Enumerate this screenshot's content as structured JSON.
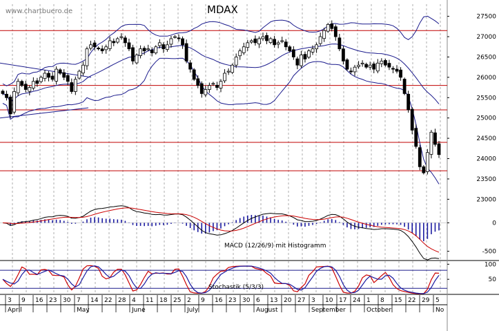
{
  "chart_data": [
    {
      "type": "candlestick",
      "title": "MDAX",
      "watermark": "www.chartbuero.de",
      "ylim": [
        22700,
        27800
      ],
      "y_ticks": [
        "27500",
        "27000",
        "26500",
        "26000",
        "25500",
        "25000",
        "24500",
        "24000",
        "23500",
        "23000"
      ],
      "y_tick_values": [
        27500,
        27000,
        26500,
        26000,
        25500,
        25000,
        24500,
        24000,
        23500,
        23000
      ],
      "horizontal_levels": [
        27150,
        25800,
        25200,
        24400,
        23700
      ],
      "close": [
        25600,
        25500,
        25100,
        25650,
        25900,
        25800,
        25700,
        25750,
        25900,
        25850,
        26000,
        26100,
        26000,
        25950,
        26200,
        26100,
        26000,
        25900,
        25650,
        25950,
        26150,
        26300,
        26700,
        26800,
        26750,
        26700,
        26650,
        26750,
        26900,
        26850,
        26950,
        27000,
        26850,
        26700,
        26400,
        26550,
        26700,
        26650,
        26700,
        26600,
        26750,
        26850,
        26700,
        26800,
        26950,
        27000,
        26950,
        26800,
        26400,
        26200,
        25950,
        25800,
        25600,
        25700,
        25800,
        25850,
        25750,
        25900,
        26100,
        26150,
        26300,
        26500,
        26650,
        26750,
        26850,
        26900,
        26850,
        26950,
        27000,
        26900,
        26950,
        26800,
        26850,
        26900,
        26750,
        26650,
        26500,
        26300,
        26550,
        26450,
        26650,
        26700,
        26800,
        27000,
        27150,
        27300,
        27200,
        27000,
        26700,
        26400,
        26200,
        26150,
        26250,
        26300,
        26350,
        26250,
        26300,
        26200,
        26350,
        26400,
        26300,
        26250,
        26200,
        26150,
        26000,
        25600,
        25200,
        24700,
        24300,
        23800,
        23650,
        24150,
        24650,
        24350,
        24100
      ]
    },
    {
      "type": "line",
      "label": "MACD (12/26/9) mit Histogramm",
      "ylim": [
        -650,
        200
      ],
      "y_ticks": [
        "0",
        "-500"
      ],
      "y_tick_values": [
        0,
        -500
      ]
    },
    {
      "type": "line",
      "label": "Stochastik (5/3/3)",
      "ylim": [
        0,
        110
      ],
      "y_ticks": [
        "100",
        "50"
      ],
      "y_tick_values": [
        100,
        50
      ],
      "levels": [
        80,
        20
      ]
    }
  ],
  "x_axis": {
    "day_labels": [
      "3",
      "9",
      "16",
      "23",
      "30",
      "7",
      "14",
      "22",
      "28",
      "4",
      "11",
      "18",
      "25",
      "2",
      "9",
      "16",
      "23",
      "30",
      "6",
      "13",
      "20",
      "27",
      "3",
      "10",
      "17",
      "24",
      "1",
      "8",
      "15",
      "22",
      "29",
      "5"
    ],
    "month_labels": [
      "April",
      "May",
      "June",
      "July",
      "August",
      "September",
      "October",
      "No"
    ]
  }
}
